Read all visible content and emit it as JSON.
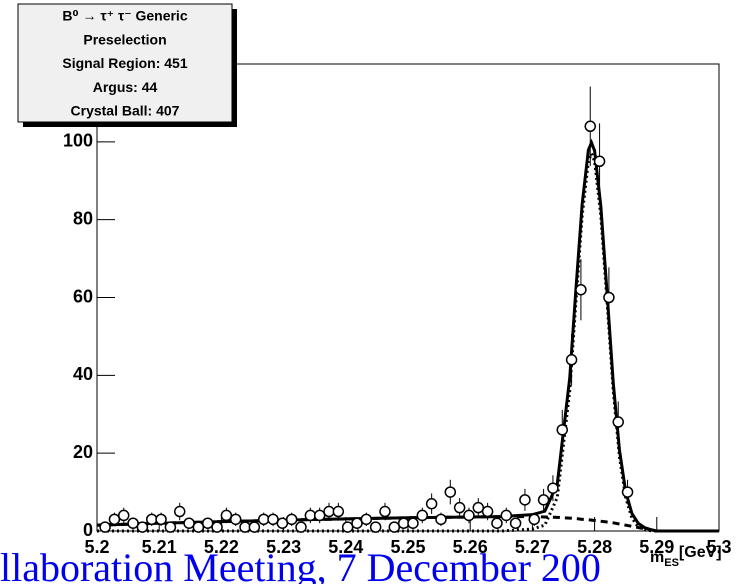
{
  "chart_data": {
    "type": "scatter",
    "legend_box": [
      "B⁰ → τ⁺ τ⁻ Generic",
      "Preselection",
      "Signal Region: 451",
      "Argus: 44",
      "Crystal Ball: 407"
    ],
    "xlabel": {
      "main": "m",
      "sub": "ES",
      "unit": "[GeV]"
    },
    "xlim": [
      5.2,
      5.3
    ],
    "ylim": [
      0,
      120
    ],
    "xticks": [
      5.2,
      5.21,
      5.22,
      5.23,
      5.24,
      5.25,
      5.26,
      5.27,
      5.28,
      5.29,
      5.3
    ],
    "yticks": [
      0,
      20,
      40,
      60,
      80,
      100
    ],
    "series": [
      {
        "color": "#000000",
        "x": [
          5.2013,
          5.2028,
          5.2043,
          5.2058,
          5.2073,
          5.2088,
          5.2103,
          5.2118,
          5.2133,
          5.2148,
          5.2163,
          5.2178,
          5.2193,
          5.2208,
          5.2223,
          5.2238,
          5.2253,
          5.2268,
          5.2283,
          5.2298,
          5.2313,
          5.2328,
          5.2343,
          5.2358,
          5.2373,
          5.2388,
          5.2403,
          5.2418,
          5.2433,
          5.2448,
          5.2463,
          5.2478,
          5.2493,
          5.2508,
          5.2523,
          5.2538,
          5.2553,
          5.2568,
          5.2583,
          5.2598,
          5.2613,
          5.2628,
          5.2643,
          5.2658,
          5.2673,
          5.2688,
          5.2703,
          5.2718,
          5.2733,
          5.2748,
          5.2763,
          5.2778,
          5.2793,
          5.2808,
          5.2823,
          5.2838,
          5.2853
        ],
        "values": [
          1,
          3,
          4,
          2,
          1,
          3,
          3,
          1,
          5,
          2,
          1,
          2,
          1,
          4,
          3,
          1,
          1,
          3,
          3,
          2,
          3,
          1,
          4,
          4,
          5,
          5,
          1,
          2,
          3,
          1,
          5,
          1,
          2,
          2,
          4,
          7,
          3,
          10,
          6,
          4,
          6,
          5,
          2,
          4,
          2,
          8,
          3,
          8,
          11,
          26,
          44,
          62,
          104,
          95,
          60,
          28,
          10
        ],
        "errors": [
          1,
          1.73,
          2,
          1.41,
          1,
          1.73,
          1.73,
          1,
          2.24,
          1.41,
          1,
          1.41,
          1,
          2,
          1.73,
          1,
          1,
          1.73,
          1.73,
          1.41,
          1.73,
          1,
          2,
          2,
          2.24,
          2.24,
          1,
          1.41,
          1.73,
          1,
          2.24,
          1,
          1.41,
          1.41,
          2,
          2.65,
          1.73,
          3.16,
          2.45,
          2,
          2.45,
          2.24,
          1.41,
          2,
          1.41,
          2.83,
          1.73,
          2.83,
          3.32,
          5.1,
          6.63,
          7.87,
          10.2,
          9.75,
          7.75,
          5.29,
          3.16
        ]
      }
    ],
    "curves": {
      "x": [
        5.2,
        5.21,
        5.22,
        5.23,
        5.24,
        5.25,
        5.26,
        5.265,
        5.27,
        5.272,
        5.274,
        5.276,
        5.277,
        5.278,
        5.279,
        5.2795,
        5.28,
        5.281,
        5.282,
        5.283,
        5.284,
        5.285,
        5.286,
        5.287,
        5.288,
        5.289,
        5.29,
        5.3
      ],
      "series": [
        {
          "style": "solid",
          "color": "#000000",
          "values": [
            1.5,
            2,
            2.4,
            2.8,
            3.1,
            3.4,
            3.6,
            3.7,
            4.2,
            5.1,
            12.1,
            39.3,
            62.2,
            84,
            97.9,
            99.8,
            97.7,
            83.5,
            61.3,
            38.1,
            20.8,
            10.1,
            4.5,
            2,
            0.9,
            0.37,
            0,
            0
          ]
        },
        {
          "style": "dotted",
          "color": "#000000",
          "values": [
            0,
            0,
            0,
            0,
            0,
            0,
            0,
            0,
            0.5,
            1.5,
            8.6,
            36,
            59,
            81,
            95,
            97,
            95,
            81,
            59,
            36,
            19,
            8.6,
            3.3,
            1.1,
            0.3,
            0.07,
            0,
            0
          ]
        },
        {
          "style": "dashed",
          "color": "#000000",
          "values": [
            1.5,
            2,
            2.4,
            2.8,
            3.1,
            3.4,
            3.6,
            3.7,
            3.7,
            3.6,
            3.5,
            3.3,
            3.2,
            3,
            2.9,
            2.8,
            2.7,
            2.5,
            2.3,
            2.1,
            1.8,
            1.5,
            1.2,
            0.9,
            0.6,
            0.3,
            0,
            0
          ]
        }
      ]
    },
    "footer": "llaboration Meeting, 7 December 200"
  }
}
